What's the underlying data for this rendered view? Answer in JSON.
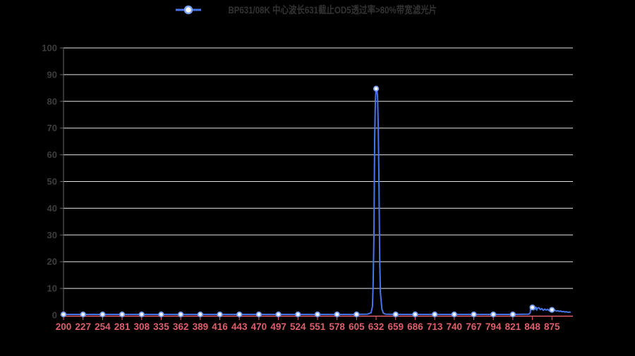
{
  "chart_data": {
    "type": "line",
    "legend_label": "BP631/08K 中心波长631截止OD5透过率>80%带宽滤光片",
    "legend_position": "top-center",
    "grid": "horizontal",
    "xlim": [
      200,
      904
    ],
    "ylim": [
      0,
      100
    ],
    "x_ticks": [
      200,
      227,
      254,
      281,
      308,
      335,
      362,
      389,
      416,
      443,
      470,
      497,
      524,
      551,
      578,
      605,
      632,
      659,
      686,
      713,
      740,
      767,
      794,
      821,
      848,
      875
    ],
    "y_ticks": [
      0,
      10,
      20,
      30,
      40,
      50,
      60,
      70,
      80,
      90,
      100
    ],
    "colors": {
      "background": "#000000",
      "grid_line": "#e3e3e3",
      "y_axis_line": "#666666",
      "y_label": "#3d3d3d",
      "x_axis_line": "#de5f6b",
      "x_label": "#de5f6b",
      "series_line": "#4775e8",
      "marker_stroke": "#7da2f7",
      "marker_fill": "#ffffff",
      "legend_text": "#333333"
    },
    "series": [
      {
        "name": "BP631/08K 中心波长631截止OD5透过率>80%带宽滤光片",
        "marker_x": [
          200,
          227,
          254,
          281,
          308,
          335,
          362,
          389,
          416,
          443,
          470,
          497,
          524,
          551,
          578,
          605,
          632,
          659,
          686,
          713,
          740,
          767,
          794,
          821,
          848,
          875
        ],
        "points": [
          [
            200,
            0
          ],
          [
            227,
            0
          ],
          [
            254,
            0
          ],
          [
            281,
            0
          ],
          [
            308,
            0
          ],
          [
            335,
            0
          ],
          [
            362,
            0
          ],
          [
            389,
            0
          ],
          [
            416,
            0
          ],
          [
            443,
            0
          ],
          [
            470,
            0
          ],
          [
            497,
            0
          ],
          [
            524,
            0
          ],
          [
            551,
            0
          ],
          [
            578,
            0
          ],
          [
            605,
            0
          ],
          [
            620,
            0.1
          ],
          [
            625,
            0.6
          ],
          [
            627,
            3
          ],
          [
            628,
            12
          ],
          [
            629,
            30
          ],
          [
            630,
            65
          ],
          [
            631,
            80
          ],
          [
            632,
            84.5
          ],
          [
            633,
            84
          ],
          [
            634,
            82
          ],
          [
            635,
            70
          ],
          [
            636,
            50
          ],
          [
            637,
            20
          ],
          [
            638,
            8
          ],
          [
            640,
            2
          ],
          [
            642,
            0.5
          ],
          [
            645,
            0.1
          ],
          [
            659,
            0
          ],
          [
            686,
            0
          ],
          [
            713,
            0
          ],
          [
            740,
            0
          ],
          [
            767,
            0
          ],
          [
            794,
            0
          ],
          [
            821,
            0
          ],
          [
            843,
            0.1
          ],
          [
            845,
            0.6
          ],
          [
            846,
            3.3
          ],
          [
            847,
            1.9
          ],
          [
            848,
            2.6
          ],
          [
            849,
            3.4
          ],
          [
            850,
            1.7
          ],
          [
            851,
            2.9
          ],
          [
            852,
            2.0
          ],
          [
            853,
            2.7
          ],
          [
            854,
            1.6
          ],
          [
            855,
            2.3
          ],
          [
            857,
            2.5
          ],
          [
            859,
            1.8
          ],
          [
            861,
            2.2
          ],
          [
            863,
            1.5
          ],
          [
            865,
            2.0
          ],
          [
            867,
            1.6
          ],
          [
            869,
            1.9
          ],
          [
            871,
            1.4
          ],
          [
            873,
            1.6
          ],
          [
            875,
            1.7
          ],
          [
            877,
            1.4
          ],
          [
            879,
            1.6
          ],
          [
            881,
            1.2
          ],
          [
            883,
            1.4
          ],
          [
            885,
            1.1
          ],
          [
            887,
            1.3
          ],
          [
            889,
            1.0
          ],
          [
            891,
            1.1
          ],
          [
            893,
            0.9
          ],
          [
            895,
            1.0
          ],
          [
            897,
            0.8
          ],
          [
            899,
            0.9
          ],
          [
            901,
            0.8
          ]
        ]
      }
    ]
  }
}
